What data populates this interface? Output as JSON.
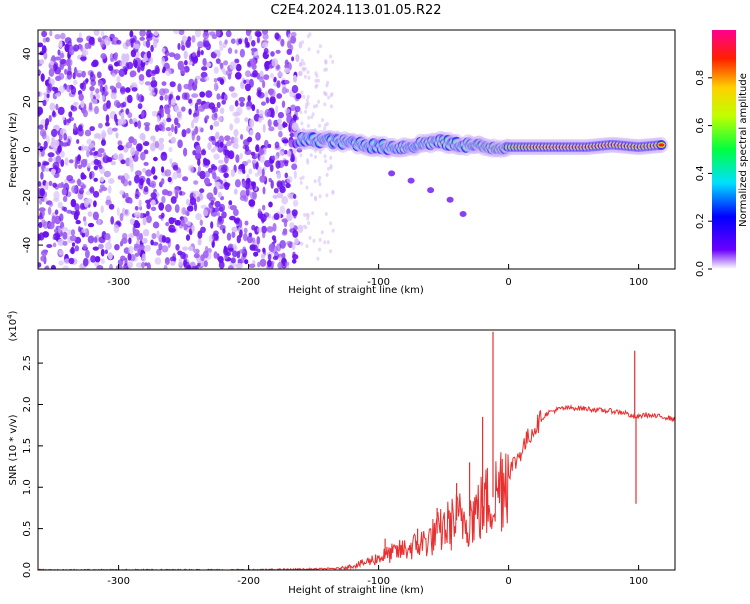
{
  "title": "C2E4.2024.113.01.05.R22",
  "chart_data": [
    {
      "type": "heatmap",
      "xlabel": "Height of straight line (km)",
      "ylabel": "Frequency (Hz)",
      "xlim": [
        -362,
        128
      ],
      "ylim": [
        -50,
        50
      ],
      "x_ticks": [
        -300,
        -200,
        -100,
        0,
        100
      ],
      "y_ticks": [
        -40,
        -20,
        0,
        20,
        40
      ],
      "noise_region_x": [
        -362,
        -160
      ],
      "signal_band": [
        {
          "x": -160,
          "y": 4,
          "amp": 0.45
        },
        {
          "x": -150,
          "y": 4,
          "amp": 0.5
        },
        {
          "x": -140,
          "y": 4,
          "amp": 0.55
        },
        {
          "x": -130,
          "y": 3,
          "amp": 0.55
        },
        {
          "x": -120,
          "y": 3,
          "amp": 0.5
        },
        {
          "x": -110,
          "y": 2,
          "amp": 0.5
        },
        {
          "x": -100,
          "y": 1,
          "amp": 0.5
        },
        {
          "x": -90,
          "y": 1,
          "amp": 0.5
        },
        {
          "x": -80,
          "y": 1,
          "amp": 0.55
        },
        {
          "x": -70,
          "y": 2,
          "amp": 0.55
        },
        {
          "x": -60,
          "y": 3,
          "amp": 0.6
        },
        {
          "x": -50,
          "y": 3,
          "amp": 0.6
        },
        {
          "x": -40,
          "y": 2,
          "amp": 0.55
        },
        {
          "x": -30,
          "y": 2,
          "amp": 0.6
        },
        {
          "x": -20,
          "y": 1,
          "amp": 0.7
        },
        {
          "x": -10,
          "y": 1,
          "amp": 0.75
        },
        {
          "x": 0,
          "y": 1,
          "amp": 0.8
        },
        {
          "x": 20,
          "y": 1,
          "amp": 0.9
        },
        {
          "x": 40,
          "y": 1,
          "amp": 0.95
        },
        {
          "x": 60,
          "y": 1,
          "amp": 0.95
        },
        {
          "x": 80,
          "y": 2,
          "amp": 0.95
        },
        {
          "x": 100,
          "y": 1,
          "amp": 0.9
        },
        {
          "x": 120,
          "y": 2,
          "amp": 0.9
        }
      ],
      "branch": [
        {
          "x": -90,
          "y": -10
        },
        {
          "x": -75,
          "y": -13
        },
        {
          "x": -60,
          "y": -17
        },
        {
          "x": -45,
          "y": -21
        },
        {
          "x": -35,
          "y": -27
        }
      ]
    },
    {
      "type": "line",
      "xlabel": "Height of straight line (km)",
      "ylabel": "SNR (10 * v/v)",
      "y_multiplier": "(x10",
      "y_multiplier_exp": "4",
      "y_multiplier_close": ")",
      "xlim": [
        -362,
        128
      ],
      "ylim": [
        0,
        2.9
      ],
      "x_ticks": [
        -300,
        -200,
        -100,
        0,
        100
      ],
      "y_ticks": [
        "0.0",
        "0.5",
        "1.0",
        "1.5",
        "2.0",
        "2.5"
      ],
      "color": "#e83030",
      "series": [
        {
          "x": [
            -362,
            -300,
            -200,
            -150,
            -130,
            -120,
            -110,
            -100,
            -90,
            -80,
            -70,
            -60,
            -50,
            -40,
            -30,
            -20,
            -15,
            -10,
            -5,
            0,
            5,
            10,
            15,
            20,
            25,
            30,
            40,
            50,
            60,
            70,
            80,
            90,
            95,
            100,
            105,
            110,
            120,
            128
          ],
          "y": [
            0.0,
            0.0,
            0.0,
            0.01,
            0.02,
            0.05,
            0.09,
            0.15,
            0.2,
            0.25,
            0.3,
            0.38,
            0.5,
            0.6,
            0.65,
            0.75,
            0.85,
            0.9,
            1.1,
            1.2,
            1.3,
            1.45,
            1.6,
            1.72,
            1.82,
            1.9,
            1.95,
            1.96,
            1.95,
            1.93,
            1.92,
            1.9,
            1.85,
            1.85,
            1.88,
            1.86,
            1.85,
            1.82
          ],
          "spikes": [
            {
              "x": -12,
              "y": 2.88
            },
            {
              "x": -20,
              "y": 1.85
            },
            {
              "x": -30,
              "y": 1.3
            },
            {
              "x": -40,
              "y": 1.05
            },
            {
              "x": -55,
              "y": 0.75
            },
            {
              "x": -70,
              "y": 0.5
            },
            {
              "x": -95,
              "y": 0.38
            },
            {
              "x": 97,
              "y": 2.65
            },
            {
              "x": 98,
              "y": 0.8
            }
          ]
        }
      ]
    }
  ],
  "colorbar": {
    "label": "Normalized spectral amplitude",
    "range": [
      0,
      1
    ],
    "ticks": [
      "0.0",
      "0.2",
      "0.4",
      "0.6",
      "0.8"
    ]
  }
}
